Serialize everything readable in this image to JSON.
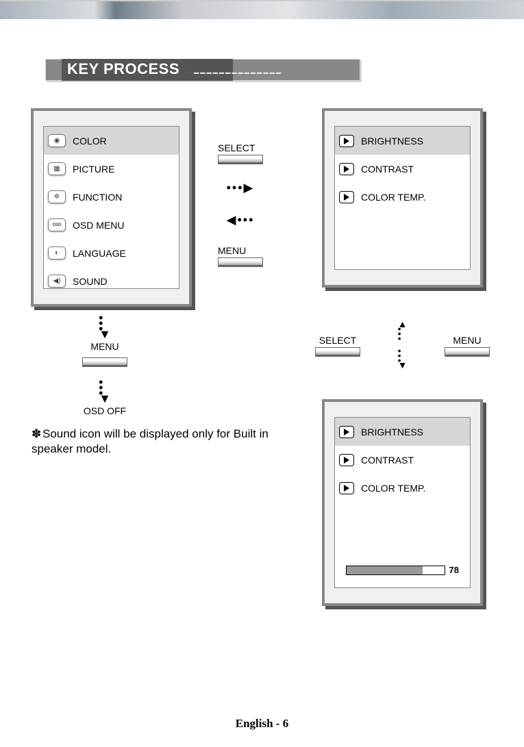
{
  "section_title": "KEY PROCESS",
  "main_menu": {
    "items": [
      {
        "label": "COLOR",
        "selected": true,
        "icon": "◉"
      },
      {
        "label": "PICTURE",
        "selected": false,
        "icon": "▦"
      },
      {
        "label": "FUNCTION",
        "selected": false,
        "icon": "✲"
      },
      {
        "label": "OSD MENU",
        "selected": false,
        "icon": "OSD"
      },
      {
        "label": "LANGUAGE",
        "selected": false,
        "icon": "◐"
      },
      {
        "label": "SOUND",
        "selected": false,
        "icon": "◀)"
      }
    ]
  },
  "sub_menu": {
    "items": [
      {
        "label": "BRIGHTNESS",
        "selected": true
      },
      {
        "label": "CONTRAST",
        "selected": false
      },
      {
        "label": "COLOR TEMP.",
        "selected": false
      }
    ]
  },
  "slider": {
    "value": 78,
    "percent": 78
  },
  "buttons": {
    "select": "SELECT",
    "menu": "MENU"
  },
  "osd_off": "OSD OFF",
  "note": "Sound icon will be displayed only for Built in speaker model.",
  "footer": "English - 6",
  "colors": {
    "panel_border": "#888888",
    "panel_shadow": "#555555",
    "selected_bg": "#d6d6d6",
    "slider_fill": "#999999",
    "header_bar": "#666666"
  }
}
